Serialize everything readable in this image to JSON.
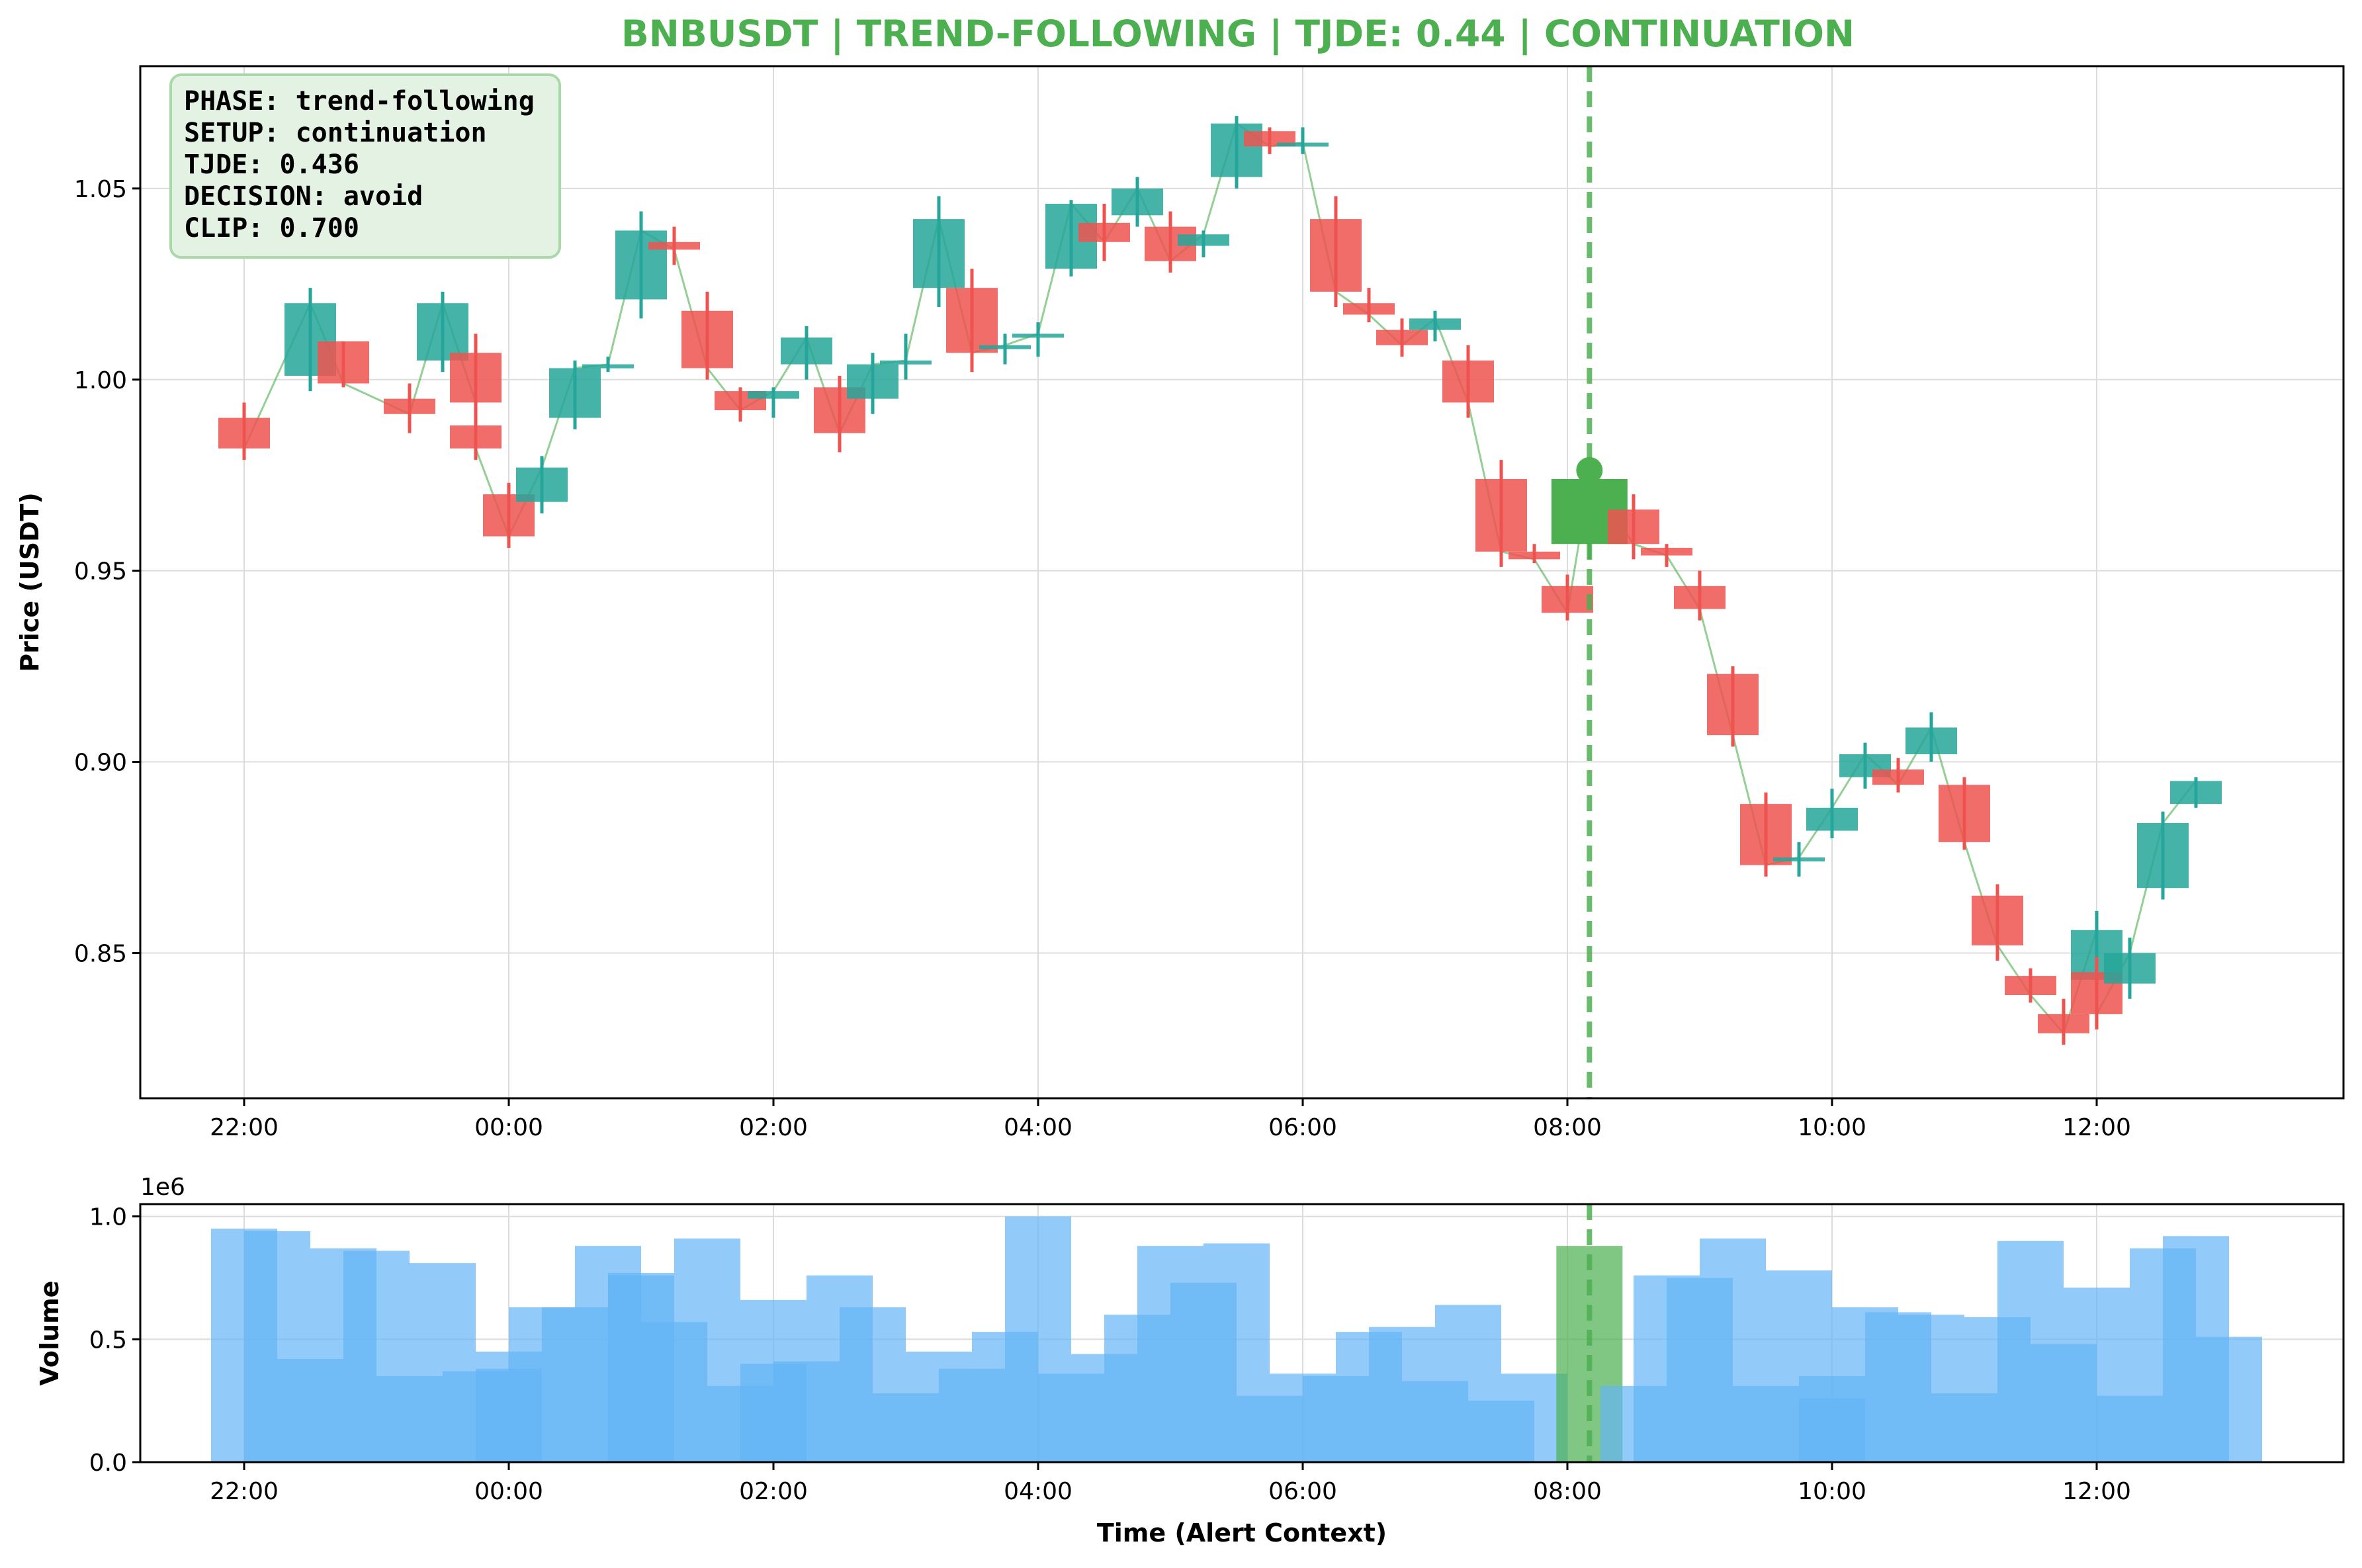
{
  "chart_data": [
    {
      "type": "candlestick",
      "title": "BNBUSDT | TREND-FOLLOWING | TJDE: 0.44 | CONTINUATION",
      "ylabel": "Price (USDT)",
      "ylim": [
        0.812,
        1.082
      ],
      "yticks": [
        "0.85",
        "0.90",
        "0.95",
        "1.00",
        "1.05"
      ],
      "xticks": [
        "22:00",
        "00:00",
        "02:00",
        "04:00",
        "06:00",
        "08:00",
        "10:00",
        "12:00"
      ],
      "grid": true,
      "alert_time": "08:10",
      "info_box": [
        "PHASE: trend-following",
        "SETUP: continuation",
        "TJDE: 0.436",
        "DECISION: avoid",
        "CLIP: 0.700"
      ],
      "candles": [
        {
          "t": "22:00",
          "o": 0.99,
          "h": 0.994,
          "l": 0.979,
          "c": 0.982
        },
        {
          "t": "22:30",
          "o": 1.001,
          "h": 1.024,
          "l": 0.997,
          "c": 1.02
        },
        {
          "t": "22:45",
          "o": 1.01,
          "h": 1.01,
          "l": 0.998,
          "c": 0.999
        },
        {
          "t": "23:15",
          "o": 0.995,
          "h": 0.999,
          "l": 0.986,
          "c": 0.991
        },
        {
          "t": "23:30",
          "o": 1.005,
          "h": 1.023,
          "l": 1.002,
          "c": 1.02
        },
        {
          "t": "23:45",
          "o": 1.007,
          "h": 1.012,
          "l": 0.99,
          "c": 0.994
        },
        {
          "t": "23:45",
          "o": 0.988,
          "h": 0.992,
          "l": 0.979,
          "c": 0.982
        },
        {
          "t": "00:00",
          "o": 0.97,
          "h": 0.973,
          "l": 0.956,
          "c": 0.959
        },
        {
          "t": "00:15",
          "o": 0.968,
          "h": 0.98,
          "l": 0.965,
          "c": 0.977
        },
        {
          "t": "00:30",
          "o": 0.99,
          "h": 1.005,
          "l": 0.987,
          "c": 1.003
        },
        {
          "t": "00:45",
          "o": 1.004,
          "h": 1.006,
          "l": 1.002,
          "c": 1.004
        },
        {
          "t": "01:00",
          "o": 1.021,
          "h": 1.044,
          "l": 1.016,
          "c": 1.039
        },
        {
          "t": "01:15",
          "o": 1.036,
          "h": 1.04,
          "l": 1.03,
          "c": 1.034
        },
        {
          "t": "01:30",
          "o": 1.018,
          "h": 1.023,
          "l": 1.0,
          "c": 1.003
        },
        {
          "t": "01:45",
          "o": 0.997,
          "h": 0.998,
          "l": 0.989,
          "c": 0.992
        },
        {
          "t": "02:00",
          "o": 0.995,
          "h": 0.998,
          "l": 0.99,
          "c": 0.997
        },
        {
          "t": "02:15",
          "o": 1.004,
          "h": 1.014,
          "l": 1.0,
          "c": 1.011
        },
        {
          "t": "02:30",
          "o": 0.998,
          "h": 1.001,
          "l": 0.981,
          "c": 0.986
        },
        {
          "t": "02:45",
          "o": 0.995,
          "h": 1.007,
          "l": 0.991,
          "c": 1.004
        },
        {
          "t": "03:00",
          "o": 1.005,
          "h": 1.012,
          "l": 1.0,
          "c": 1.005
        },
        {
          "t": "03:15",
          "o": 1.024,
          "h": 1.048,
          "l": 1.019,
          "c": 1.042
        },
        {
          "t": "03:30",
          "o": 1.024,
          "h": 1.029,
          "l": 1.002,
          "c": 1.007
        },
        {
          "t": "03:45",
          "o": 1.008,
          "h": 1.012,
          "l": 1.004,
          "c": 1.009
        },
        {
          "t": "04:00",
          "o": 1.011,
          "h": 1.015,
          "l": 1.006,
          "c": 1.012
        },
        {
          "t": "04:15",
          "o": 1.029,
          "h": 1.047,
          "l": 1.027,
          "c": 1.046
        },
        {
          "t": "04:30",
          "o": 1.041,
          "h": 1.046,
          "l": 1.031,
          "c": 1.036
        },
        {
          "t": "04:45",
          "o": 1.043,
          "h": 1.053,
          "l": 1.04,
          "c": 1.05
        },
        {
          "t": "05:00",
          "o": 1.04,
          "h": 1.044,
          "l": 1.028,
          "c": 1.031
        },
        {
          "t": "05:15",
          "o": 1.035,
          "h": 1.039,
          "l": 1.032,
          "c": 1.038
        },
        {
          "t": "05:30",
          "o": 1.053,
          "h": 1.069,
          "l": 1.05,
          "c": 1.067
        },
        {
          "t": "05:45",
          "o": 1.065,
          "h": 1.066,
          "l": 1.059,
          "c": 1.061
        },
        {
          "t": "06:00",
          "o": 1.062,
          "h": 1.066,
          "l": 1.059,
          "c": 1.062
        },
        {
          "t": "06:15",
          "o": 1.042,
          "h": 1.048,
          "l": 1.019,
          "c": 1.023
        },
        {
          "t": "06:30",
          "o": 1.02,
          "h": 1.024,
          "l": 1.015,
          "c": 1.017
        },
        {
          "t": "06:45",
          "o": 1.013,
          "h": 1.016,
          "l": 1.006,
          "c": 1.009
        },
        {
          "t": "07:00",
          "o": 1.013,
          "h": 1.018,
          "l": 1.01,
          "c": 1.016
        },
        {
          "t": "07:15",
          "o": 1.005,
          "h": 1.009,
          "l": 0.99,
          "c": 0.994
        },
        {
          "t": "07:30",
          "o": 0.974,
          "h": 0.979,
          "l": 0.951,
          "c": 0.955
        },
        {
          "t": "07:45",
          "o": 0.955,
          "h": 0.957,
          "l": 0.952,
          "c": 0.953
        },
        {
          "t": "08:00",
          "o": 0.946,
          "h": 0.949,
          "l": 0.937,
          "c": 0.939
        },
        {
          "t": "08:10",
          "o": 0.957,
          "h": 0.978,
          "l": 0.953,
          "c": 0.974
        },
        {
          "t": "08:30",
          "o": 0.966,
          "h": 0.97,
          "l": 0.953,
          "c": 0.957
        },
        {
          "t": "08:45",
          "o": 0.956,
          "h": 0.957,
          "l": 0.951,
          "c": 0.954
        },
        {
          "t": "09:00",
          "o": 0.946,
          "h": 0.95,
          "l": 0.937,
          "c": 0.94
        },
        {
          "t": "09:15",
          "o": 0.923,
          "h": 0.925,
          "l": 0.904,
          "c": 0.907
        },
        {
          "t": "09:30",
          "o": 0.889,
          "h": 0.892,
          "l": 0.87,
          "c": 0.873
        },
        {
          "t": "09:45",
          "o": 0.874,
          "h": 0.879,
          "l": 0.87,
          "c": 0.875
        },
        {
          "t": "10:00",
          "o": 0.882,
          "h": 0.893,
          "l": 0.88,
          "c": 0.888
        },
        {
          "t": "10:15",
          "o": 0.896,
          "h": 0.905,
          "l": 0.893,
          "c": 0.902
        },
        {
          "t": "10:30",
          "o": 0.898,
          "h": 0.901,
          "l": 0.892,
          "c": 0.894
        },
        {
          "t": "10:45",
          "o": 0.902,
          "h": 0.913,
          "l": 0.9,
          "c": 0.909
        },
        {
          "t": "11:00",
          "o": 0.894,
          "h": 0.896,
          "l": 0.877,
          "c": 0.879
        },
        {
          "t": "11:15",
          "o": 0.865,
          "h": 0.868,
          "l": 0.848,
          "c": 0.852
        },
        {
          "t": "11:30",
          "o": 0.844,
          "h": 0.846,
          "l": 0.837,
          "c": 0.839
        },
        {
          "t": "11:45",
          "o": 0.834,
          "h": 0.838,
          "l": 0.826,
          "c": 0.829
        },
        {
          "t": "12:00",
          "o": 0.843,
          "h": 0.861,
          "l": 0.84,
          "c": 0.856
        },
        {
          "t": "12:00",
          "o": 0.845,
          "h": 0.849,
          "l": 0.83,
          "c": 0.834
        },
        {
          "t": "12:15",
          "o": 0.842,
          "h": 0.854,
          "l": 0.838,
          "c": 0.85
        },
        {
          "t": "12:30",
          "o": 0.867,
          "h": 0.887,
          "l": 0.864,
          "c": 0.884
        },
        {
          "t": "12:45",
          "o": 0.889,
          "h": 0.896,
          "l": 0.888,
          "c": 0.895
        }
      ]
    },
    {
      "type": "bar",
      "ylabel": "Volume",
      "xlabel": "Time (Alert Context)",
      "scale_label": "1e6",
      "ylim": [
        0,
        1050000
      ],
      "yticks": [
        "0.0",
        "0.5",
        "1.0"
      ],
      "xticks": [
        "22:00",
        "00:00",
        "02:00",
        "04:00",
        "06:00",
        "08:00",
        "10:00",
        "12:00"
      ],
      "grid": true,
      "bars": [
        {
          "t": "22:00",
          "v": 950000
        },
        {
          "t": "22:15",
          "v": 940000
        },
        {
          "t": "22:30",
          "v": 420000
        },
        {
          "t": "22:45",
          "v": 870000
        },
        {
          "t": "23:00",
          "v": 860000
        },
        {
          "t": "23:15",
          "v": 350000
        },
        {
          "t": "23:30",
          "v": 810000
        },
        {
          "t": "23:45",
          "v": 370000
        },
        {
          "t": "00:00",
          "v": 380000
        },
        {
          "t": "00:00",
          "v": 450000
        },
        {
          "t": "00:15",
          "v": 630000
        },
        {
          "t": "00:30",
          "v": 630000
        },
        {
          "t": "00:45",
          "v": 880000
        },
        {
          "t": "01:00",
          "v": 770000
        },
        {
          "t": "01:00",
          "v": 760000
        },
        {
          "t": "01:15",
          "v": 570000
        },
        {
          "t": "01:30",
          "v": 910000
        },
        {
          "t": "01:45",
          "v": 310000
        },
        {
          "t": "02:00",
          "v": 400000
        },
        {
          "t": "02:00",
          "v": 660000
        },
        {
          "t": "02:15",
          "v": 410000
        },
        {
          "t": "02:30",
          "v": 760000
        },
        {
          "t": "02:45",
          "v": 630000
        },
        {
          "t": "03:00",
          "v": 280000
        },
        {
          "t": "03:15",
          "v": 450000
        },
        {
          "t": "03:30",
          "v": 380000
        },
        {
          "t": "03:45",
          "v": 530000
        },
        {
          "t": "04:00",
          "v": 1000000
        },
        {
          "t": "04:15",
          "v": 360000
        },
        {
          "t": "04:30",
          "v": 440000
        },
        {
          "t": "04:45",
          "v": 600000
        },
        {
          "t": "05:00",
          "v": 880000
        },
        {
          "t": "05:15",
          "v": 730000
        },
        {
          "t": "05:30",
          "v": 890000
        },
        {
          "t": "05:45",
          "v": 270000
        },
        {
          "t": "06:00",
          "v": 360000
        },
        {
          "t": "06:15",
          "v": 350000
        },
        {
          "t": "06:30",
          "v": 530000
        },
        {
          "t": "06:45",
          "v": 550000
        },
        {
          "t": "07:00",
          "v": 330000
        },
        {
          "t": "07:15",
          "v": 640000
        },
        {
          "t": "07:30",
          "v": 250000
        },
        {
          "t": "07:45",
          "v": 360000
        },
        {
          "t": "08:10",
          "v": 880000
        },
        {
          "t": "08:30",
          "v": 310000
        },
        {
          "t": "08:45",
          "v": 760000
        },
        {
          "t": "09:00",
          "v": 750000
        },
        {
          "t": "09:15",
          "v": 910000
        },
        {
          "t": "09:30",
          "v": 310000
        },
        {
          "t": "09:45",
          "v": 780000
        },
        {
          "t": "10:00",
          "v": 260000
        },
        {
          "t": "10:00",
          "v": 350000
        },
        {
          "t": "10:15",
          "v": 630000
        },
        {
          "t": "10:30",
          "v": 610000
        },
        {
          "t": "10:45",
          "v": 600000
        },
        {
          "t": "11:00",
          "v": 280000
        },
        {
          "t": "11:15",
          "v": 590000
        },
        {
          "t": "11:30",
          "v": 900000
        },
        {
          "t": "11:45",
          "v": 480000
        },
        {
          "t": "12:00",
          "v": 710000
        },
        {
          "t": "12:15",
          "v": 270000
        },
        {
          "t": "12:30",
          "v": 870000
        },
        {
          "t": "12:45",
          "v": 920000
        },
        {
          "t": "13:00",
          "v": 510000
        }
      ]
    }
  ],
  "colors": {
    "up": "#26a69a",
    "down": "#ef5350",
    "alert": "#4caf50",
    "volume": "#64b5f6",
    "title": "#4caf50",
    "info_box_bg": "#e4f2e4",
    "info_box_border": "#a9d8a9"
  }
}
